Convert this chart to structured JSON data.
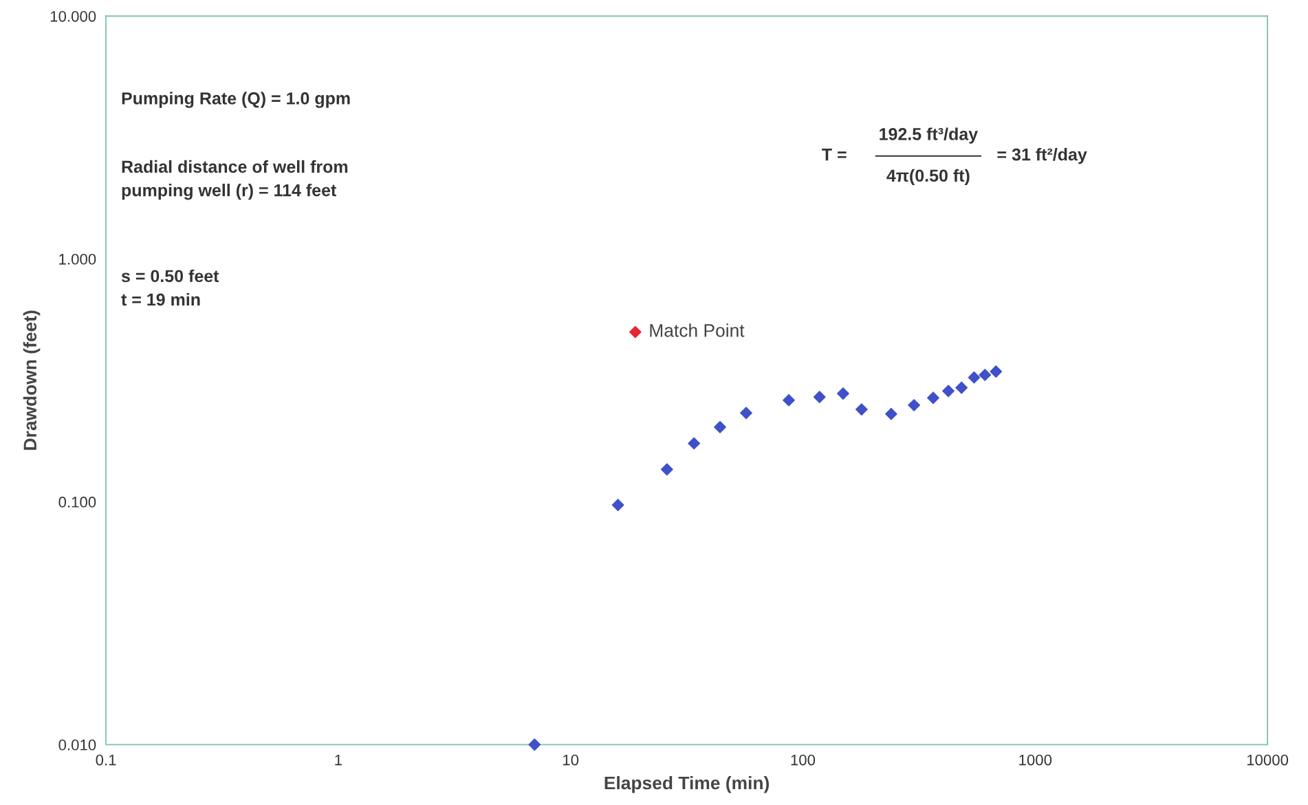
{
  "chart_data": {
    "type": "scatter",
    "xlabel": "Elapsed Time (min)",
    "ylabel": "Drawdown (feet)",
    "log": "xy",
    "marker": "diamond",
    "grid": false,
    "legend": false,
    "xlim": [
      0.1,
      10000
    ],
    "xticks": [
      0.1,
      1,
      10,
      100,
      1000,
      10000
    ],
    "ylim": [
      0.01,
      10
    ],
    "yticks": [
      {
        "value": 0.01,
        "label": "0.010"
      },
      {
        "value": 0.1,
        "label": "0.100"
      },
      {
        "value": 1,
        "label": "1.000"
      },
      {
        "value": 10,
        "label": "10.000"
      }
    ],
    "series": [
      {
        "color": "#3f51c8",
        "x": [
          7,
          16,
          26,
          34,
          44,
          57,
          87,
          118,
          149,
          179,
          240,
          301,
          364,
          423,
          482,
          546,
          608,
          678
        ],
        "values": [
          0.01,
          0.097,
          0.136,
          0.174,
          0.203,
          0.232,
          0.262,
          0.27,
          0.279,
          0.24,
          0.23,
          0.25,
          0.268,
          0.286,
          0.295,
          0.325,
          0.333,
          0.344
        ]
      },
      {
        "name": "Match Point",
        "color": "#e8262f",
        "x": [
          19
        ],
        "values": [
          0.5
        ]
      }
    ],
    "annotations": [
      "Pumping Rate (Q) = 1.0 gpm",
      "Radial distance of well from\npumping well (r) = 114 feet",
      "s = 0.50 feet\nt = 19 min",
      "T =",
      "192.5 ft³/day",
      "4π(0.50 ft)",
      "= 31 ft²/day"
    ]
  }
}
